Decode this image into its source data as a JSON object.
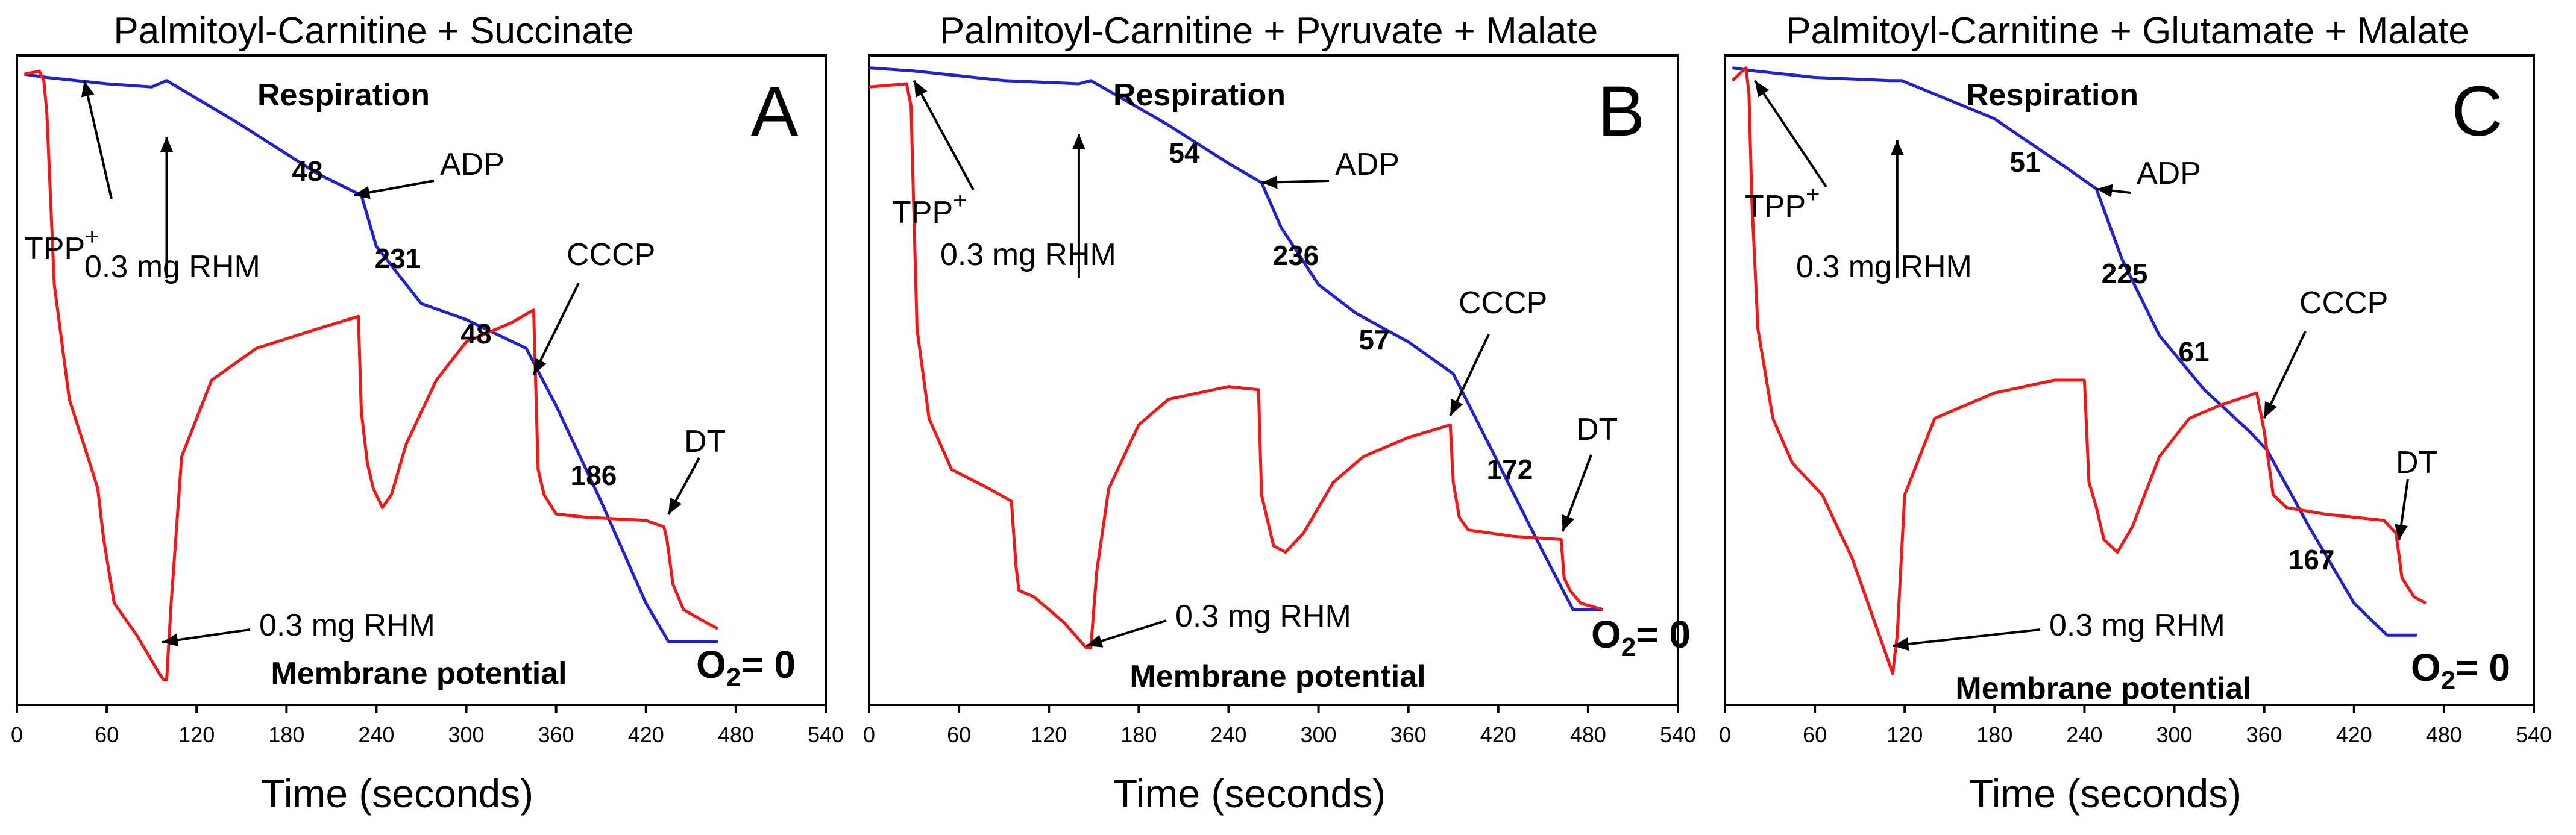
{
  "figure": {
    "x_axis_title": "Time (seconds)",
    "respiration_label": "Respiration",
    "membrane_label": "Membrane potential",
    "o2_label": "O",
    "o2_sub": "2",
    "o2_value": "= 0",
    "tpp_label": "TPP",
    "tpp_sup": "+",
    "rhm_label": "0.3 mg RHM",
    "adp_label": "ADP",
    "cccp_label": "CCCP",
    "dt_label": "DT"
  },
  "colors": {
    "respiration": "#2222cc",
    "membrane": "#ee1a1a",
    "frame": "#000000"
  },
  "chart_data": [
    {
      "type": "line",
      "panel_letter": "A",
      "title": "Palmitoyl-Carnitine + Succinate",
      "xlabel": "Time (seconds)",
      "ylabel": "",
      "xlim": [
        0,
        540
      ],
      "x_ticks": [
        0,
        60,
        120,
        180,
        240,
        300,
        360,
        420,
        480,
        540
      ],
      "rate_labels": [
        "48",
        "231",
        "48",
        "186"
      ],
      "series": [
        {
          "name": "Respiration",
          "color": "#2222cc",
          "x": [
            5,
            20,
            60,
            90,
            100,
            150,
            200,
            230,
            240,
            270,
            300,
            340,
            360,
            390,
            420,
            435,
            468
          ],
          "y": [
            98,
            97.5,
            96.5,
            96,
            97,
            90,
            82.5,
            79,
            71,
            62,
            59.5,
            55,
            46,
            31,
            15,
            9,
            9
          ]
        },
        {
          "name": "Membrane potential",
          "color": "#ee1a1a",
          "x": [
            5,
            15,
            18,
            20,
            25,
            35,
            50,
            54,
            58,
            65,
            80,
            95,
            98,
            100,
            103,
            110,
            130,
            160,
            200,
            228,
            230,
            234,
            238,
            244,
            250,
            260,
            280,
            300,
            330,
            345,
            348,
            352,
            360,
            380,
            420,
            432,
            434,
            438,
            445,
            460,
            468
          ],
          "y": [
            98,
            98.5,
            97,
            92,
            65,
            47,
            36,
            33,
            25,
            15,
            10,
            4,
            3,
            3,
            15,
            38,
            50,
            55,
            58,
            60,
            45,
            37,
            33,
            30,
            32,
            40,
            50,
            56,
            59,
            61,
            36,
            32,
            29,
            28.5,
            28,
            27,
            25,
            18,
            14,
            12,
            11
          ]
        }
      ]
    },
    {
      "type": "line",
      "panel_letter": "B",
      "title": "Palmitoyl-Carnitine + Pyruvate + Malate",
      "xlabel": "Time (seconds)",
      "ylabel": "",
      "xlim": [
        0,
        540
      ],
      "x_ticks": [
        0,
        60,
        120,
        180,
        240,
        300,
        360,
        420,
        480,
        540
      ],
      "rate_labels": [
        "54",
        "236",
        "57",
        "172"
      ],
      "series": [
        {
          "name": "Respiration",
          "color": "#2222cc",
          "x": [
            0,
            30,
            90,
            140,
            148,
            200,
            240,
            262,
            275,
            300,
            325,
            360,
            390,
            420,
            450,
            470,
            490
          ],
          "y": [
            99,
            98.5,
            97,
            96.5,
            97,
            90,
            84,
            81,
            74,
            65,
            60.5,
            56,
            51,
            37,
            23,
            14,
            14
          ]
        },
        {
          "name": "Membrane potential",
          "color": "#ee1a1a",
          "x": [
            0,
            25,
            28,
            30,
            32,
            40,
            55,
            80,
            95,
            98,
            100,
            110,
            130,
            145,
            148,
            152,
            160,
            180,
            200,
            240,
            260,
            262,
            266,
            270,
            278,
            290,
            310,
            330,
            360,
            388,
            390,
            394,
            400,
            430,
            462,
            464,
            468,
            475,
            490
          ],
          "y": [
            96,
            96.5,
            93,
            75,
            58,
            44,
            36,
            33,
            31,
            21,
            17,
            16,
            12,
            8,
            8,
            20,
            33,
            43,
            47,
            49,
            48.5,
            32,
            28,
            24,
            23,
            26,
            34,
            38,
            41,
            43,
            34,
            28.5,
            26.5,
            25.5,
            25,
            19,
            17,
            15,
            14
          ]
        }
      ]
    },
    {
      "type": "line",
      "panel_letter": "C",
      "title": "Palmitoyl-Carnitine + Glutamate + Malate",
      "xlabel": "Time (seconds)",
      "ylabel": "",
      "xlim": [
        0,
        540
      ],
      "x_ticks": [
        0,
        60,
        120,
        180,
        240,
        300,
        360,
        420,
        480,
        540
      ],
      "rate_labels": [
        "51",
        "225",
        "61",
        "167"
      ],
      "series": [
        {
          "name": "Respiration",
          "color": "#2222cc",
          "x": [
            5,
            20,
            60,
            110,
            118,
            180,
            230,
            248,
            265,
            290,
            320,
            350,
            362,
            390,
            420,
            442,
            462
          ],
          "y": [
            99,
            98.5,
            97.5,
            97,
            97,
            91,
            83,
            80,
            69,
            57,
            48.5,
            42,
            39,
            27,
            15,
            10,
            10
          ]
        },
        {
          "name": "Membrane potential",
          "color": "#ee1a1a",
          "x": [
            5,
            14,
            16,
            18,
            22,
            32,
            45,
            65,
            85,
            100,
            112,
            115,
            120,
            140,
            180,
            220,
            240,
            243,
            248,
            253,
            262,
            272,
            290,
            310,
            330,
            355,
            360,
            366,
            375,
            400,
            440,
            448,
            452,
            460,
            468
          ],
          "y": [
            97,
            99,
            95,
            78,
            58,
            44,
            37,
            32,
            22,
            12,
            4,
            10,
            32,
            44,
            48,
            50,
            50,
            34,
            30,
            25,
            23,
            27,
            38,
            44,
            46,
            48,
            42,
            32,
            30,
            29,
            28,
            26,
            19,
            16,
            15
          ]
        }
      ]
    }
  ]
}
